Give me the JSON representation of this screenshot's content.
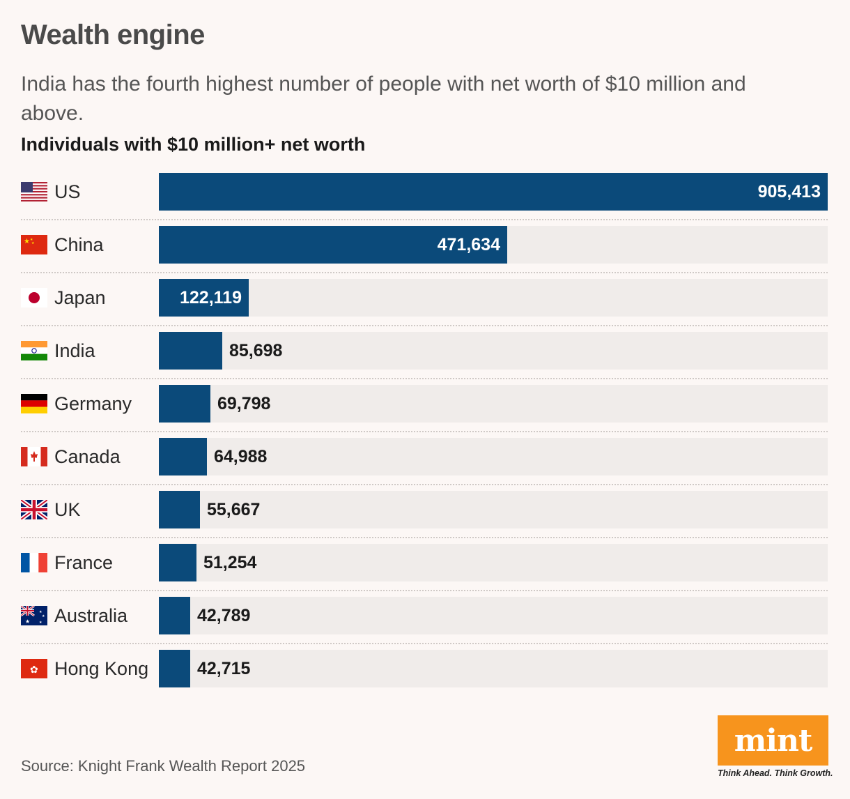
{
  "title": "Wealth engine",
  "subtitle": "India has the fourth highest number of people with net worth of $10 million and above.",
  "source": "Source: Knight Frank Wealth Report 2025",
  "logo": {
    "text": "mint",
    "tagline": "Think Ahead. Think Growth.",
    "color": "#f7941d"
  },
  "colors": {
    "bar": "#0b4a7a",
    "track": "#f0ecea",
    "background": "#fcf7f5"
  },
  "chart_data": {
    "type": "bar",
    "orientation": "horizontal",
    "title": "Individuals with $10 million+ net worth",
    "categories": [
      "US",
      "China",
      "Japan",
      "India",
      "Germany",
      "Canada",
      "UK",
      "France",
      "Australia",
      "Hong Kong"
    ],
    "flags": [
      "us-flag-icon",
      "china-flag-icon",
      "japan-flag-icon",
      "india-flag-icon",
      "germany-flag-icon",
      "canada-flag-icon",
      "uk-flag-icon",
      "france-flag-icon",
      "australia-flag-icon",
      "hong-kong-flag-icon"
    ],
    "values": [
      905413,
      471634,
      122119,
      85698,
      69798,
      64988,
      55667,
      51254,
      42789,
      42715
    ],
    "value_labels": [
      "905,413",
      "471,634",
      "122,119",
      "85,698",
      "69,798",
      "64,988",
      "55,667",
      "51,254",
      "42,789",
      "42,715"
    ],
    "xlim": [
      0,
      905413
    ],
    "grid": false,
    "legend": "none"
  }
}
